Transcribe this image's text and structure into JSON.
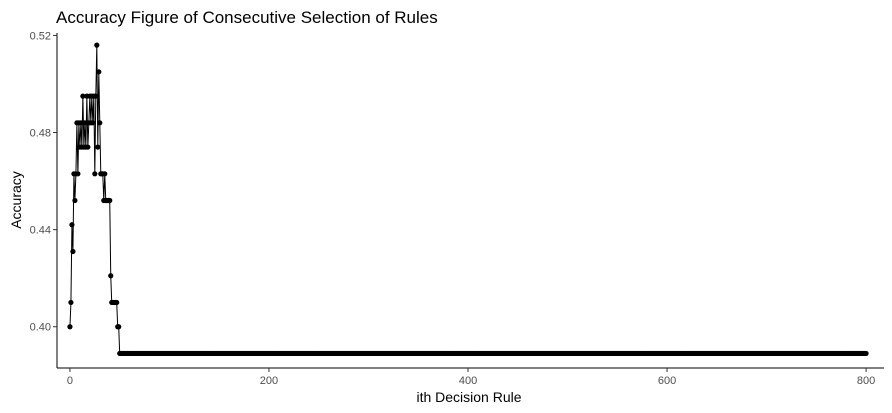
{
  "chart_data": {
    "type": "line",
    "title": "Accuracy Figure of Consecutive Selection of Rules",
    "xlabel": "ith Decision Rule",
    "ylabel": "Accuracy",
    "xlim": [
      -13,
      818
    ],
    "ylim": [
      0.383,
      0.521
    ],
    "xticks": [
      0,
      200,
      400,
      600,
      800
    ],
    "xtick_labels": [
      "0",
      "200",
      "400",
      "600",
      "800"
    ],
    "yticks": [
      0.4,
      0.44,
      0.48,
      0.52
    ],
    "ytick_labels": [
      "0.40",
      "0.44",
      "0.48",
      "0.52"
    ],
    "grid": false,
    "legend": "none",
    "marker": "point",
    "series": [
      {
        "color": "#000000",
        "points": [
          [
            0,
            0.4
          ],
          [
            1,
            0.41
          ],
          [
            2,
            0.442
          ],
          [
            3,
            0.431
          ],
          [
            4,
            0.463
          ],
          [
            5,
            0.452
          ],
          [
            6,
            0.463
          ],
          [
            7,
            0.484
          ],
          [
            8,
            0.463
          ],
          [
            9,
            0.484
          ],
          [
            10,
            0.474
          ],
          [
            11,
            0.484
          ],
          [
            12,
            0.474
          ],
          [
            13,
            0.495
          ],
          [
            14,
            0.474
          ],
          [
            15,
            0.484
          ],
          [
            16,
            0.474
          ],
          [
            17,
            0.495
          ],
          [
            18,
            0.474
          ],
          [
            19,
            0.484
          ],
          [
            20,
            0.495
          ],
          [
            21,
            0.484
          ],
          [
            22,
            0.495
          ],
          [
            23,
            0.484
          ],
          [
            24,
            0.495
          ],
          [
            25,
            0.463
          ],
          [
            26,
            0.495
          ],
          [
            27,
            0.516
          ],
          [
            28,
            0.474
          ],
          [
            29,
            0.505
          ],
          [
            30,
            0.484
          ],
          [
            31,
            0.463
          ],
          [
            32,
            0.463
          ],
          [
            33,
            0.463
          ],
          [
            34,
            0.452
          ],
          [
            35,
            0.463
          ],
          [
            36,
            0.452
          ],
          [
            37,
            0.452
          ],
          [
            38,
            0.452
          ],
          [
            39,
            0.452
          ],
          [
            40,
            0.452
          ],
          [
            41,
            0.421
          ],
          [
            42,
            0.41
          ],
          [
            43,
            0.41
          ],
          [
            44,
            0.41
          ],
          [
            45,
            0.41
          ],
          [
            46,
            0.41
          ],
          [
            47,
            0.41
          ],
          [
            48,
            0.4
          ],
          [
            49,
            0.4
          ],
          [
            50,
            0.389
          ]
        ],
        "plateau": {
          "x_from": 50,
          "x_to": 800,
          "y": 0.389
        }
      }
    ]
  }
}
